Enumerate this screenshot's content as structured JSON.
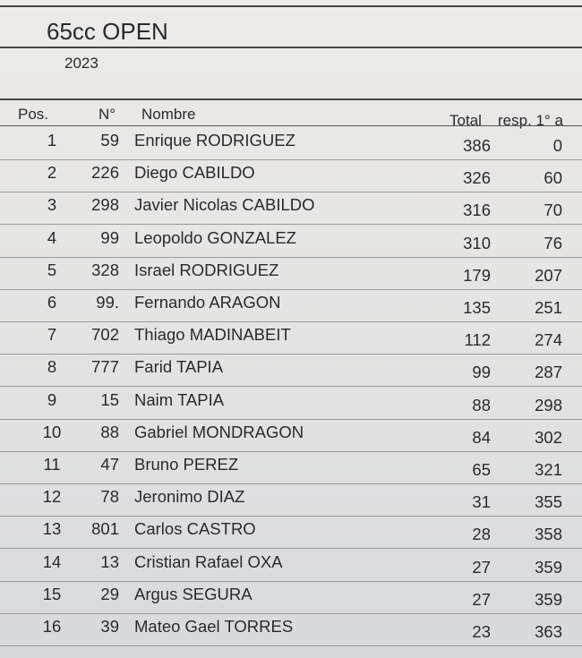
{
  "header": {
    "title": "65cc OPEN",
    "year": "2023"
  },
  "table": {
    "columns": [
      "Pos.",
      "N°",
      "Nombre",
      "Total",
      "resp. 1° a"
    ],
    "rows": [
      [
        "1",
        "59",
        "Enrique RODRIGUEZ",
        "386",
        "0"
      ],
      [
        "2",
        "226",
        "Diego CABILDO",
        "326",
        "60"
      ],
      [
        "3",
        "298",
        "Javier Nicolas CABILDO",
        "316",
        "70"
      ],
      [
        "4",
        "99",
        "Leopoldo GONZALEZ",
        "310",
        "76"
      ],
      [
        "5",
        "328",
        "Israel RODRIGUEZ",
        "179",
        "207"
      ],
      [
        "6",
        "99.",
        "Fernando ARAGON",
        "135",
        "251"
      ],
      [
        "7",
        "702",
        "Thiago MADINABEIT",
        "112",
        "274"
      ],
      [
        "8",
        "777",
        "Farid TAPIA",
        "99",
        "287"
      ],
      [
        "9",
        "15",
        "Naim TAPIA",
        "88",
        "298"
      ],
      [
        "10",
        "88",
        "Gabriel MONDRAGON",
        "84",
        "302"
      ],
      [
        "11",
        "47",
        "Bruno PEREZ",
        "65",
        "321"
      ],
      [
        "12",
        "78",
        "Jeronimo DIAZ",
        "31",
        "355"
      ],
      [
        "13",
        "801",
        "Carlos CASTRO",
        "28",
        "358"
      ],
      [
        "14",
        "13",
        "Cristian Rafael OXA",
        "27",
        "359"
      ],
      [
        "15",
        "29",
        "Argus SEGURA",
        "27",
        "359"
      ],
      [
        "16",
        "39",
        "Mateo Gael TORRES",
        "23",
        "363"
      ]
    ]
  }
}
